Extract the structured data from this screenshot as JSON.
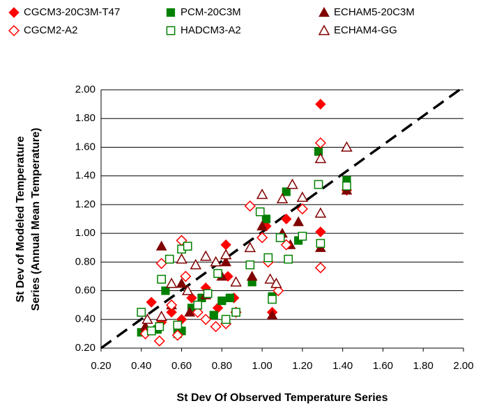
{
  "chart_data": {
    "type": "scatter",
    "x_label": "St Dev Of Observed Temperature Series",
    "y_label": [
      "St Dev of Modeled Temperature",
      "Series (Annual Mean Temperature)"
    ],
    "xlim": [
      0.2,
      2.0
    ],
    "ylim": [
      0.2,
      2.0
    ],
    "xticks": [
      {
        "value": 0.2,
        "label": "0.20"
      },
      {
        "value": 0.4,
        "label": "0.40"
      },
      {
        "value": 0.6,
        "label": "0.60"
      },
      {
        "value": 0.8,
        "label": "0.80"
      },
      {
        "value": 1.0,
        "label": "1.00"
      },
      {
        "value": 1.2,
        "label": "1.20"
      },
      {
        "value": 1.4,
        "label": "1.40"
      },
      {
        "value": 1.6,
        "label": "1.60"
      },
      {
        "value": 1.8,
        "label": "1.80"
      },
      {
        "value": 2.0,
        "label": "2.00"
      }
    ],
    "yticks": [
      {
        "value": 0.2,
        "label": "0.20"
      },
      {
        "value": 0.4,
        "label": "0.40"
      },
      {
        "value": 0.6,
        "label": "0.60"
      },
      {
        "value": 0.8,
        "label": "0.80"
      },
      {
        "value": 1.0,
        "label": "1.00"
      },
      {
        "value": 1.2,
        "label": "1.20"
      },
      {
        "value": 1.4,
        "label": "1.40"
      },
      {
        "value": 1.6,
        "label": "1.60"
      },
      {
        "value": 1.8,
        "label": "1.80"
      },
      {
        "value": 2.0,
        "label": "2.00"
      }
    ],
    "grid": true,
    "reference_line": {
      "x": [
        0.2,
        2.0
      ],
      "y": [
        0.2,
        2.02
      ]
    },
    "series": [
      {
        "name": "CGCM3-20C3M-T47",
        "color": "#ff0000",
        "marker": "diamond",
        "filled": true,
        "x": [
          0.45,
          0.5,
          0.55,
          0.6,
          0.65,
          0.72,
          0.78,
          0.82,
          0.83,
          0.86,
          1.02,
          1.05,
          1.12,
          1.29,
          1.29,
          1.42
        ],
        "values": [
          0.52,
          0.38,
          0.45,
          0.4,
          0.55,
          0.62,
          0.48,
          0.92,
          0.7,
          0.55,
          1.05,
          0.45,
          1.1,
          1.9,
          1.01,
          1.3
        ]
      },
      {
        "name": "PCM-20C3M",
        "color": "#008000",
        "marker": "square",
        "filled": true,
        "x": [
          0.4,
          0.48,
          0.52,
          0.58,
          0.6,
          0.65,
          0.7,
          0.76,
          0.8,
          0.84,
          0.95,
          1.02,
          1.05,
          1.12,
          1.18,
          1.28,
          1.42
        ],
        "values": [
          0.31,
          0.33,
          0.6,
          0.3,
          0.32,
          0.48,
          0.55,
          0.43,
          0.53,
          0.55,
          0.66,
          1.1,
          0.56,
          1.29,
          0.95,
          1.57,
          1.37
        ]
      },
      {
        "name": "ECHAM5-20C3M",
        "color": "#800000",
        "marker": "triangle",
        "filled": true,
        "x": [
          0.42,
          0.5,
          0.55,
          0.6,
          0.64,
          0.72,
          0.8,
          0.82,
          0.95,
          1.0,
          1.05,
          1.1,
          1.14,
          1.18,
          1.29,
          1.42
        ],
        "values": [
          0.35,
          0.91,
          0.5,
          0.65,
          0.45,
          0.57,
          0.7,
          0.8,
          0.7,
          1.05,
          0.43,
          1.0,
          0.92,
          1.08,
          0.9,
          1.3
        ]
      },
      {
        "name": "CGCM2-A2",
        "color": "#ff0000",
        "marker": "diamond",
        "filled": false,
        "x": [
          0.42,
          0.49,
          0.5,
          0.55,
          0.58,
          0.6,
          0.62,
          0.68,
          0.72,
          0.77,
          0.82,
          0.87,
          0.94,
          1.0,
          1.03,
          1.08,
          1.12,
          1.2,
          1.29,
          1.29
        ],
        "values": [
          0.3,
          0.25,
          0.79,
          0.5,
          0.29,
          0.95,
          0.7,
          0.45,
          0.4,
          0.35,
          0.37,
          0.45,
          1.19,
          0.97,
          0.8,
          0.6,
          0.92,
          1.17,
          1.63,
          0.76
        ]
      },
      {
        "name": "HADCM3-A2",
        "color": "#008000",
        "marker": "square",
        "filled": false,
        "x": [
          0.4,
          0.45,
          0.49,
          0.5,
          0.54,
          0.58,
          0.6,
          0.63,
          0.68,
          0.73,
          0.78,
          0.82,
          0.87,
          0.94,
          0.99,
          1.03,
          1.05,
          1.09,
          1.13,
          1.2,
          1.28,
          1.29,
          1.42
        ],
        "values": [
          0.45,
          0.32,
          0.35,
          0.68,
          0.82,
          0.36,
          0.89,
          0.91,
          0.5,
          0.58,
          0.72,
          0.4,
          0.45,
          0.78,
          1.15,
          0.83,
          0.54,
          0.97,
          0.82,
          0.98,
          1.34,
          0.93,
          1.33
        ]
      },
      {
        "name": "ECHAM4-GG",
        "color": "#800000",
        "marker": "triangle",
        "filled": false,
        "x": [
          0.43,
          0.5,
          0.55,
          0.6,
          0.63,
          0.67,
          0.72,
          0.77,
          0.82,
          0.87,
          0.94,
          1.0,
          1.04,
          1.07,
          1.1,
          1.15,
          1.2,
          1.29,
          1.29,
          1.42
        ],
        "values": [
          0.4,
          0.42,
          0.65,
          0.82,
          0.6,
          0.78,
          0.84,
          0.8,
          0.85,
          0.66,
          0.9,
          1.27,
          0.68,
          0.65,
          1.24,
          1.34,
          1.25,
          1.52,
          1.14,
          1.6
        ]
      }
    ]
  }
}
